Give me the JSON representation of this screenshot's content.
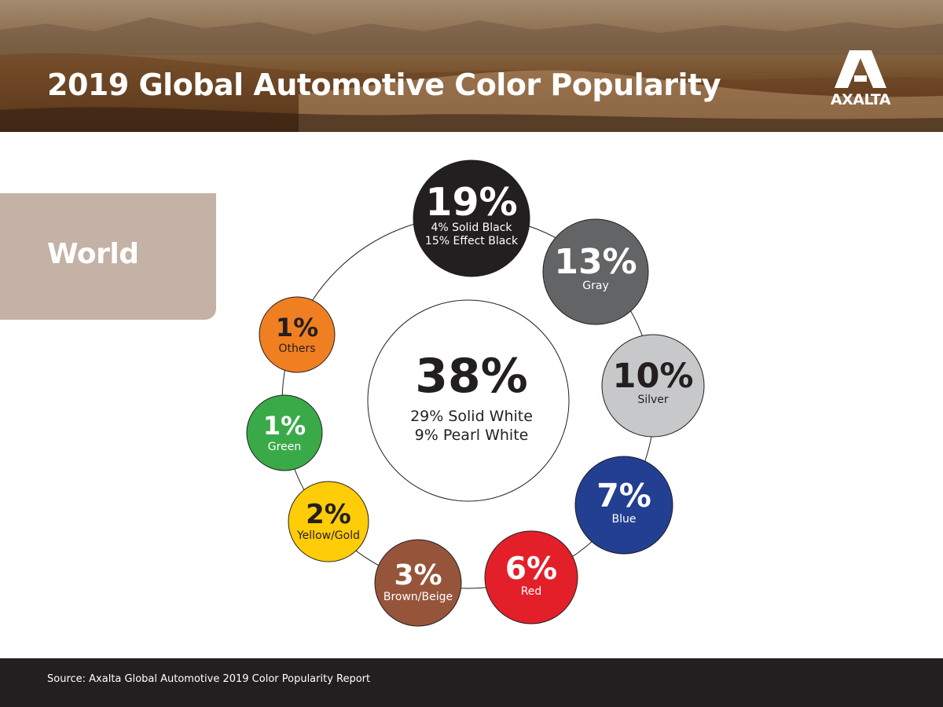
{
  "header": {
    "title": "2019 Global Automotive Color Popularity",
    "logo_text": "AXALTA"
  },
  "region": "World",
  "chart_data": {
    "type": "pie",
    "center": {
      "category": "White",
      "value_label": "38%",
      "value": 38,
      "breakdown": [
        "29% Solid White",
        "9% Pearl White"
      ],
      "color": "#ffffff"
    },
    "slices": [
      {
        "label": "",
        "value_label": "19%",
        "value": 19,
        "sublabels": [
          "4% Solid Black",
          "15% Effect Black"
        ],
        "color": "#231f20",
        "text_color": "#ffffff"
      },
      {
        "label": "Gray",
        "value_label": "13%",
        "value": 13,
        "sublabels": [],
        "color": "#636466",
        "text_color": "#ffffff"
      },
      {
        "label": "Silver",
        "value_label": "10%",
        "value": 10,
        "sublabels": [],
        "color": "#c7c8ca",
        "text_color": "#231f20"
      },
      {
        "label": "Blue",
        "value_label": "7%",
        "value": 7,
        "sublabels": [],
        "color": "#233f92",
        "text_color": "#ffffff"
      },
      {
        "label": "Red",
        "value_label": "6%",
        "value": 6,
        "sublabels": [],
        "color": "#e3202a",
        "text_color": "#ffffff"
      },
      {
        "label": "Brown/Beige",
        "value_label": "3%",
        "value": 3,
        "sublabels": [],
        "color": "#96553a",
        "text_color": "#ffffff"
      },
      {
        "label": "Yellow/Gold",
        "value_label": "2%",
        "value": 2,
        "sublabels": [],
        "color": "#ffcc08",
        "text_color": "#231f20"
      },
      {
        "label": "Green",
        "value_label": "1%",
        "value": 1,
        "sublabels": [],
        "color": "#3aaa49",
        "text_color": "#ffffff"
      },
      {
        "label": "Others",
        "value_label": "1%",
        "value": 1,
        "sublabels": [],
        "color": "#f07f21",
        "text_color": "#231f20"
      }
    ]
  },
  "footer": {
    "source": "Source: Axalta Global Automotive 2019 Color Popularity Report"
  }
}
